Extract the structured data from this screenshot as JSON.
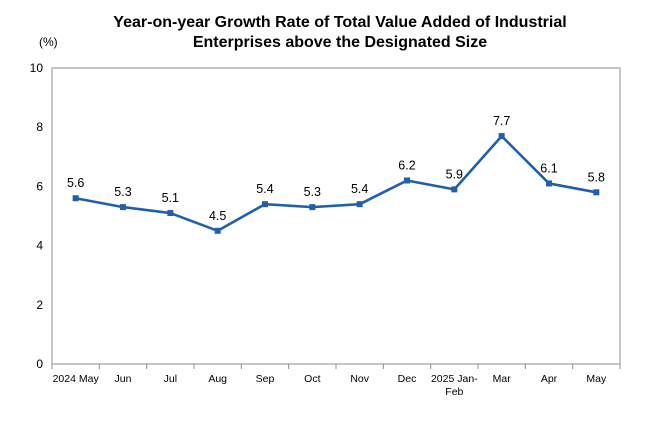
{
  "chart_data": {
    "type": "line",
    "title_lines": [
      "Year-on-year Growth Rate of Total Value Added of Industrial",
      "Enterprises above the Designated Size"
    ],
    "unit_label": "(%)",
    "xlabel": "",
    "ylabel": "",
    "ylim": [
      0,
      10
    ],
    "yticks": [
      "0",
      "2",
      "4",
      "6",
      "8",
      "10"
    ],
    "grid": false,
    "categories": [
      "2024 May",
      "Jun",
      "Jul",
      "Aug",
      "Sep",
      "Oct",
      "Nov",
      "Dec",
      "2025 Jan-Feb",
      "Mar",
      "Apr",
      "May"
    ],
    "category_lines": [
      [
        "2024 May"
      ],
      [
        "Jun"
      ],
      [
        "Jul"
      ],
      [
        "Aug"
      ],
      [
        "Sep"
      ],
      [
        "Oct"
      ],
      [
        "Nov"
      ],
      [
        "Dec"
      ],
      [
        "2025 Jan-",
        "Feb"
      ],
      [
        "Mar"
      ],
      [
        "Apr"
      ],
      [
        "May"
      ]
    ],
    "series": [
      {
        "name": "Growth rate",
        "values": [
          5.6,
          5.3,
          5.1,
          4.5,
          5.4,
          5.3,
          5.4,
          6.2,
          5.9,
          7.7,
          6.1,
          5.8
        ],
        "labels": [
          "5.6",
          "5.3",
          "5.1",
          "4.5",
          "5.4",
          "5.3",
          "5.4",
          "6.2",
          "5.9",
          "7.7",
          "6.1",
          "5.8"
        ]
      }
    ],
    "colors": {
      "line": "#1f5fad",
      "axis": "#8c8c8c"
    }
  }
}
